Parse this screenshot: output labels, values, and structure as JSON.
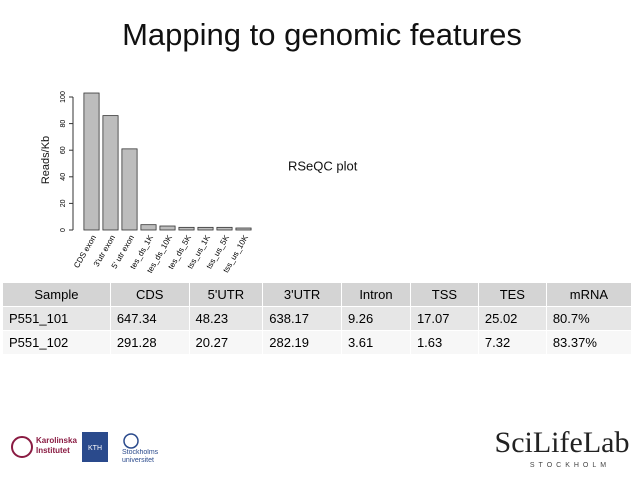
{
  "title": "Mapping to genomic features",
  "chart_data": {
    "type": "bar",
    "y_label": "Reads/Kb",
    "categories": [
      "CDS exon",
      "3'utr exon",
      "5' utr exon",
      "tes_ds_1K",
      "tes_ds_10K",
      "tes_ds_5K",
      "tss_us_1K",
      "tss_us_5K",
      "tss_us_10K"
    ],
    "values": [
      103,
      86,
      61,
      4,
      3,
      2,
      2,
      2,
      1.5
    ],
    "color": "#bdbdbd",
    "ylim": [
      0,
      104
    ],
    "yticks": [
      0,
      20,
      40,
      60,
      80,
      100
    ]
  },
  "annotation": "RSeQC plot",
  "table": {
    "header": [
      "Sample",
      "CDS",
      "5'UTR",
      "3'UTR",
      "Intron",
      "TSS",
      "TES",
      "mRNA"
    ],
    "rows": [
      [
        "P551_101",
        "647.34",
        "48.23",
        "638.17",
        "9.26",
        "17.07",
        "25.02",
        "80.7%"
      ],
      [
        "P551_102",
        "291.28",
        "20.27",
        "282.19",
        "3.61",
        "1.63",
        "7.32",
        "83.37%"
      ]
    ]
  },
  "logos": {
    "karolinska": "Karolinska Institutet",
    "kth": "KTH",
    "stockholm": "Stockholms universitet",
    "scilifelab": "SciLifeLab",
    "scilifelab_sub": "STOCKHOLM"
  }
}
